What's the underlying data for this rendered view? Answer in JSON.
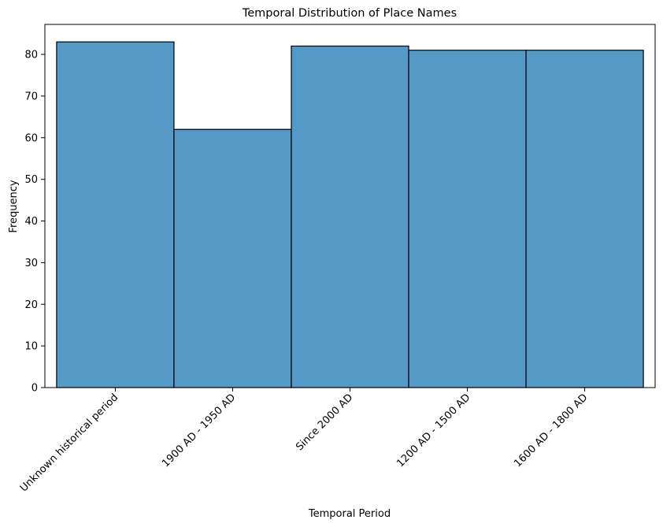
{
  "chart_data": {
    "type": "bar",
    "title": "Temporal Distribution of Place Names",
    "xlabel": "Temporal Period",
    "ylabel": "Frequency",
    "categories": [
      "Unknown historical period",
      "1900 AD - 1950 AD",
      "Since 2000 AD",
      "1200 AD - 1500 AD",
      "1600 AD - 1800 AD"
    ],
    "values": [
      83,
      62,
      82,
      81,
      81
    ],
    "ylim": [
      0,
      87.2
    ],
    "yticks": [
      0,
      10,
      20,
      30,
      40,
      50,
      60,
      70,
      80
    ],
    "grid": false,
    "legend": "none",
    "colors": {
      "bar_fill": "#5599c6",
      "bar_edge": "#000000",
      "axis": "#000000"
    }
  }
}
